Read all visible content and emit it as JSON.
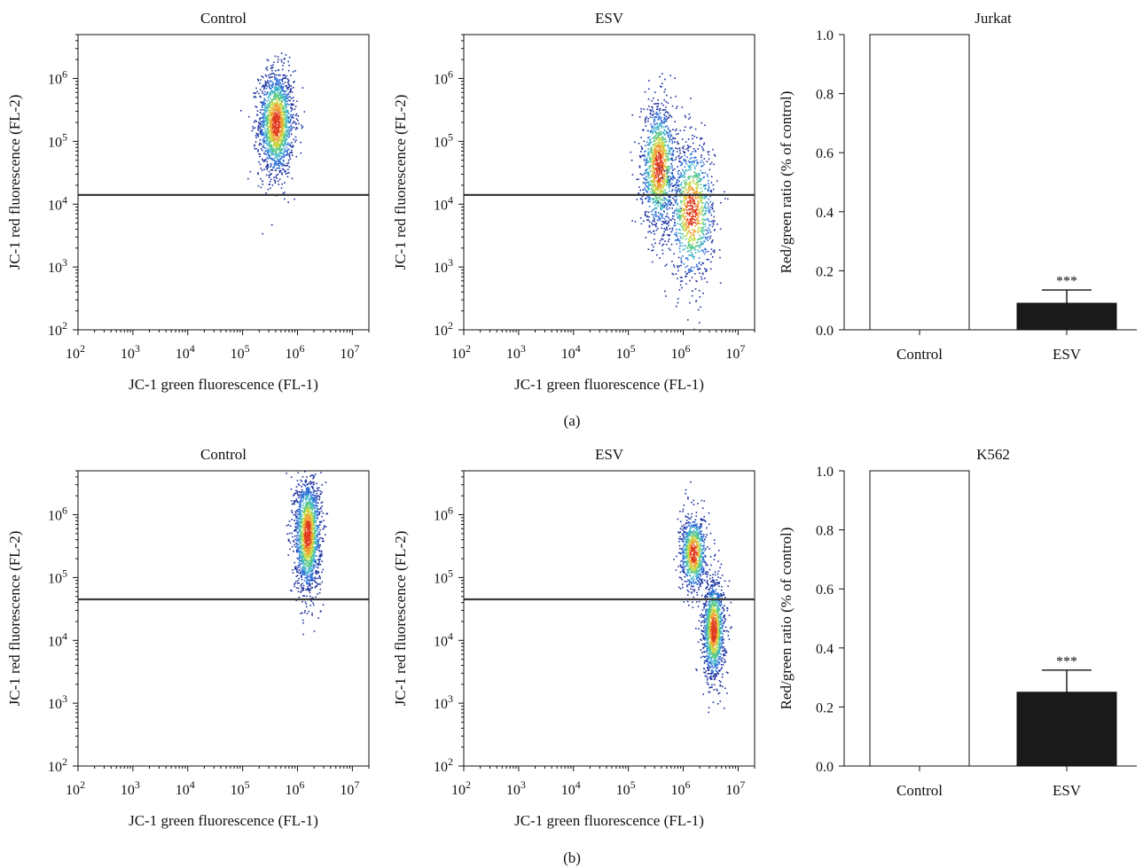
{
  "figure": {
    "panel_labels": [
      "(a)",
      "(b)"
    ]
  },
  "colors": {
    "axis": "#111111",
    "gate_line": "#3a3a3a",
    "bar_control": "#ffffff",
    "bar_esv": "#1a1a1a",
    "density_scale": [
      "#1a2f9e",
      "#2f6fd6",
      "#3fb3c9",
      "#56c886",
      "#c9d944",
      "#f0a030",
      "#e03a1e"
    ]
  },
  "chart_data": [
    {
      "id": "a-control",
      "type": "scatter",
      "title": "Control",
      "xlabel": "JC-1 green fluorescence (FL-1)",
      "ylabel": "JC-1 red fluorescence (FL-2)",
      "xscale": "log",
      "yscale": "log",
      "xlim": [
        100,
        20000000
      ],
      "ylim": [
        100,
        5000000
      ],
      "xtick_labels": [
        "10^2",
        "10^3",
        "10^4",
        "10^5",
        "10^6",
        "10^7"
      ],
      "ytick_labels": [
        "10^2",
        "10^3",
        "10^4",
        "10^5",
        "10^6"
      ],
      "gate_y": 14000,
      "clusters": [
        {
          "x": 400000,
          "y": 200000,
          "sx": 0.16,
          "sy": 0.42,
          "n": 1700
        }
      ]
    },
    {
      "id": "a-esv",
      "type": "scatter",
      "title": "ESV",
      "xlabel": "JC-1 green fluorescence (FL-1)",
      "ylabel": "JC-1 red fluorescence (FL-2)",
      "xscale": "log",
      "yscale": "log",
      "xlim": [
        100,
        20000000
      ],
      "ylim": [
        100,
        5000000
      ],
      "xtick_labels": [
        "10^2",
        "10^3",
        "10^4",
        "10^5",
        "10^6",
        "10^7"
      ],
      "ytick_labels": [
        "10^2",
        "10^3",
        "10^4",
        "10^5",
        "10^6"
      ],
      "gate_y": 14000,
      "clusters": [
        {
          "x": 350000,
          "y": 40000,
          "sx": 0.16,
          "sy": 0.5,
          "n": 1300
        },
        {
          "x": 1400000,
          "y": 8000,
          "sx": 0.2,
          "sy": 0.55,
          "n": 1100
        }
      ]
    },
    {
      "id": "a-bar",
      "type": "bar",
      "title": "Jurkat",
      "categories": [
        "Control",
        "ESV"
      ],
      "values": [
        1.0,
        0.09
      ],
      "errors": [
        0,
        0.045
      ],
      "ylabel": "Red/green ratio (% of control)",
      "ylim": [
        0,
        1.0
      ],
      "yticks": [
        "0.0",
        "0.2",
        "0.4",
        "0.6",
        "0.8",
        "1.0"
      ],
      "significance": "***"
    },
    {
      "id": "b-control",
      "type": "scatter",
      "title": "Control",
      "xlabel": "JC-1 green fluorescence (FL-1)",
      "ylabel": "JC-1 red fluorescence (FL-2)",
      "xscale": "log",
      "yscale": "log",
      "xlim": [
        100,
        20000000
      ],
      "ylim": [
        100,
        5000000
      ],
      "xtick_labels": [
        "10^2",
        "10^3",
        "10^4",
        "10^5",
        "10^6",
        "10^7"
      ],
      "ytick_labels": [
        "10^2",
        "10^3",
        "10^4",
        "10^5",
        "10^6"
      ],
      "gate_y": 45000,
      "clusters": [
        {
          "x": 1500000,
          "y": 500000,
          "sx": 0.12,
          "sy": 0.45,
          "n": 1700
        }
      ]
    },
    {
      "id": "b-esv",
      "type": "scatter",
      "title": "ESV",
      "xlabel": "JC-1 green fluorescence (FL-1)",
      "ylabel": "JC-1 red fluorescence (FL-2)",
      "xscale": "log",
      "yscale": "log",
      "xlim": [
        100,
        20000000
      ],
      "ylim": [
        100,
        5000000
      ],
      "xtick_labels": [
        "10^2",
        "10^3",
        "10^4",
        "10^5",
        "10^6",
        "10^7"
      ],
      "ytick_labels": [
        "10^2",
        "10^3",
        "10^4",
        "10^5",
        "10^6"
      ],
      "gate_y": 45000,
      "clusters": [
        {
          "x": 1500000,
          "y": 250000,
          "sx": 0.12,
          "sy": 0.3,
          "n": 900
        },
        {
          "x": 3500000,
          "y": 15000,
          "sx": 0.1,
          "sy": 0.4,
          "n": 1300
        }
      ]
    },
    {
      "id": "b-bar",
      "type": "bar",
      "title": "K562",
      "categories": [
        "Control",
        "ESV"
      ],
      "values": [
        1.0,
        0.25
      ],
      "errors": [
        0,
        0.075
      ],
      "ylabel": "Red/green ratio (% of control)",
      "ylim": [
        0,
        1.0
      ],
      "yticks": [
        "0.0",
        "0.2",
        "0.4",
        "0.6",
        "0.8",
        "1.0"
      ],
      "significance": "***"
    }
  ]
}
